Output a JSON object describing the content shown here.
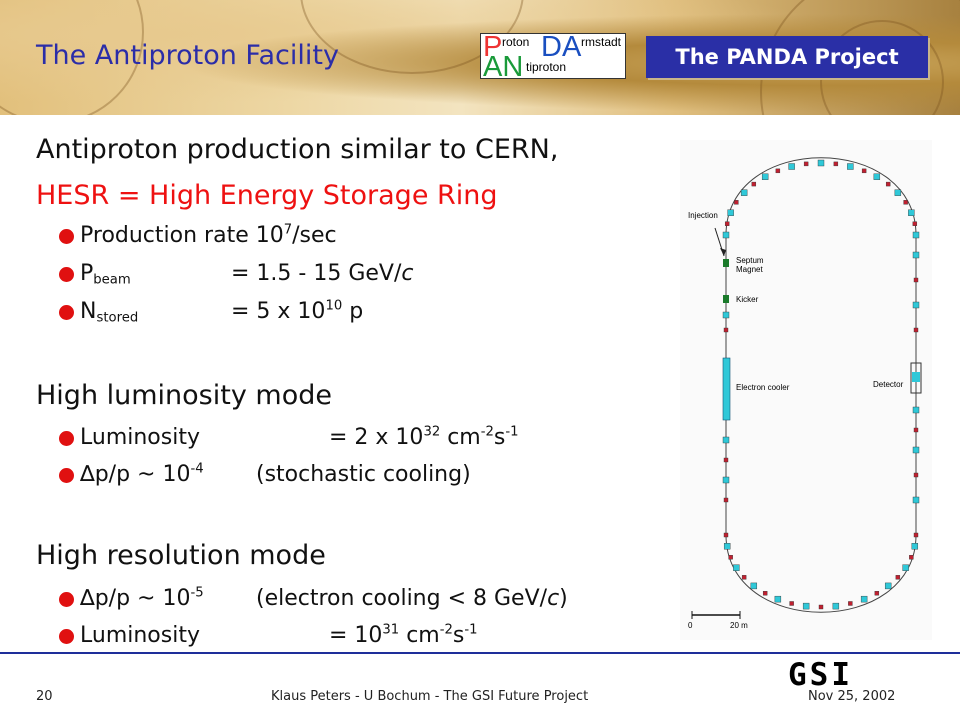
{
  "header": {
    "title": "The Antiproton Facility",
    "logo": {
      "p": "P",
      "roton": "roton",
      "da": "DA",
      "rmstadt": "rmstadt",
      "an": "AN",
      "tiproton": "tiproton"
    },
    "project_label": "The PANDA Project"
  },
  "intro": {
    "line1": "Antiproton production similar to CERN,",
    "line2": "HESR = High Energy Storage Ring"
  },
  "hesr_items": {
    "rate_prefix": "Production rate 10",
    "rate_exp": "7",
    "rate_suffix": "/sec",
    "pbeam_p": "P",
    "pbeam_sub": "beam",
    "pbeam_value_a": "= 1.5 - 15 GeV/",
    "pbeam_value_c": "c",
    "nstored_n": "N",
    "nstored_sub": "stored",
    "nstored_value": "= 5 x 10",
    "nstored_exp": "10",
    "nstored_unit": " p"
  },
  "high_lumi": {
    "heading": "High luminosity mode",
    "lumi_label": "Luminosity",
    "lumi_value": "= 2 x 10",
    "lumi_exp": "32",
    "lumi_cm": " cm",
    "lumi_cm_exp": "-2",
    "lumi_s": "s",
    "lumi_s_exp": "-1",
    "dp_symbol": "∆",
    "dp_text": "p/p ~ 10",
    "dp_exp": "-4",
    "dp_note": "(stochastic cooling)"
  },
  "high_res": {
    "heading": "High resolution mode",
    "dp_symbol": "∆",
    "dp_text": "p/p ~ 10",
    "dp_exp": "-5",
    "dp_note_a": "(electron cooling < 8 GeV/",
    "dp_note_c": "c",
    "dp_note_b": ")",
    "lumi_label": "Luminosity",
    "lumi_value": "= 10",
    "lumi_exp": "31",
    "lumi_cm": " cm",
    "lumi_cm_exp": "-2",
    "lumi_s": "s",
    "lumi_s_exp": "-1"
  },
  "figure": {
    "injection": "Injection",
    "septum": "Septum",
    "magnet": "Magnet",
    "kicker": "Kicker",
    "electron_cooler": "Electron cooler",
    "detector": "Detector",
    "scale_zero": "0",
    "scale_length": "20 m"
  },
  "footer": {
    "page": "20",
    "center": "Klaus Peters - U Bochum - The GSI Future Project",
    "date": "Nov 25, 2002",
    "gsi": "GSI"
  },
  "colors": {
    "title_blue": "#2b2da8",
    "accent_red": "#e11111",
    "project_bg": "#2a2fa6",
    "ring_cyan": "#2fc8d8",
    "ring_red": "#c02030"
  }
}
